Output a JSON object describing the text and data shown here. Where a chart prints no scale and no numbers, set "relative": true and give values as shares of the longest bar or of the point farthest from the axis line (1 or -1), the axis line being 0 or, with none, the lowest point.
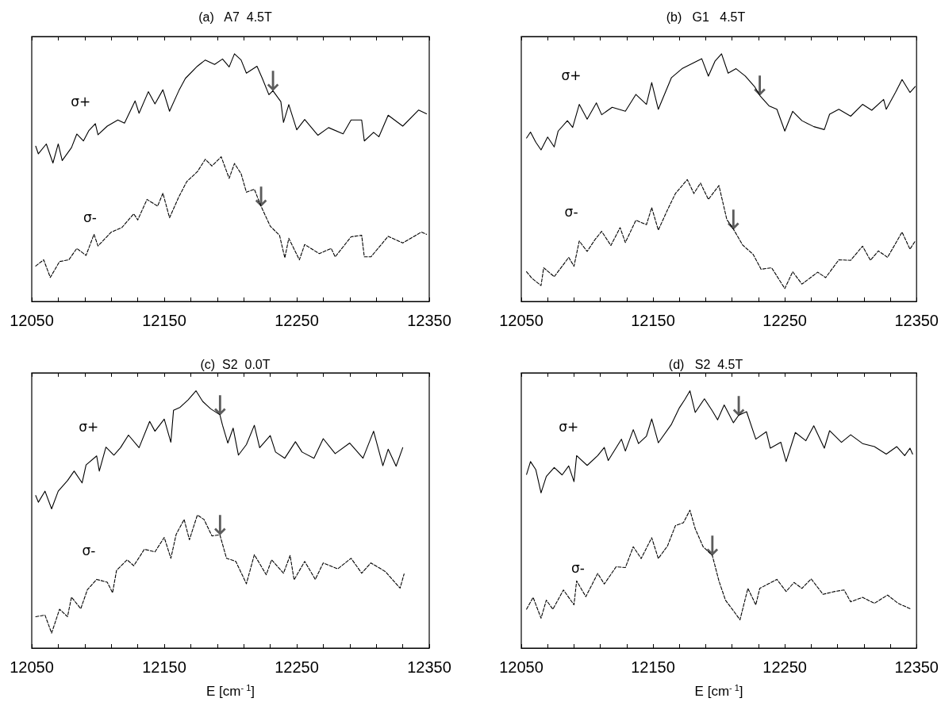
{
  "chart_data": [
    {
      "type": "line",
      "title": "(a)   A7  4.5T",
      "relative": true,
      "xlim": [
        12050,
        12350
      ],
      "xticks": [
        12050,
        {
          "value": 12070,
          "label": null
        },
        {
          "value": 12090,
          "label": null
        },
        {
          "value": 12110,
          "label": null
        },
        {
          "value": 12130,
          "label": null
        },
        12150,
        {
          "value": 12170,
          "label": null
        },
        {
          "value": 12190,
          "label": null
        },
        {
          "value": 12210,
          "label": null
        },
        {
          "value": 12230,
          "label": null
        },
        12250,
        {
          "value": 12270,
          "label": null
        },
        {
          "value": 12290,
          "label": null
        },
        {
          "value": 12310,
          "label": null
        },
        {
          "value": 12330,
          "label": null
        },
        12350
      ],
      "marker": "none",
      "series": [
        {
          "name": "σ+",
          "color": "#000000",
          "line_style": "solid",
          "x": [
            12053,
            12055,
            12061,
            12066,
            12070,
            12073,
            12080,
            12084,
            12089,
            12093,
            12098,
            12100,
            12107,
            12115,
            12120,
            12128,
            12131,
            12138,
            12143,
            12149,
            12154,
            12161,
            12166,
            12175,
            12181,
            12188,
            12194,
            12199,
            12203,
            12208,
            12212,
            12220,
            12224,
            12229,
            12232,
            12238,
            12240,
            12244,
            12250,
            12256,
            12266,
            12274,
            12285,
            12291,
            12299,
            12301,
            12308,
            12312,
            12319,
            12330,
            12342,
            12348
          ],
          "values": [
            0.627,
            0.596,
            0.636,
            0.559,
            0.636,
            0.569,
            0.621,
            0.676,
            0.648,
            0.689,
            0.718,
            0.673,
            0.708,
            0.733,
            0.72,
            0.81,
            0.76,
            0.847,
            0.798,
            0.855,
            0.768,
            0.851,
            0.901,
            0.95,
            0.975,
            0.957,
            0.979,
            0.947,
            1.0,
            0.975,
            0.922,
            0.95,
            0.901,
            0.835,
            0.851,
            0.807,
            0.723,
            0.795,
            0.693,
            0.735,
            0.671,
            0.702,
            0.677,
            0.733,
            0.733,
            0.648,
            0.683,
            0.665,
            0.752,
            0.708,
            0.773,
            0.758
          ]
        },
        {
          "name": "σ-",
          "color": "#000000",
          "line_style": "dashed",
          "x": [
            12053,
            12059,
            12064,
            12071,
            12078,
            12084,
            12091,
            12097,
            12100,
            12110,
            12118,
            12127,
            12130,
            12137,
            12145,
            12149,
            12154,
            12161,
            12167,
            12175,
            12181,
            12186,
            12193,
            12199,
            12203,
            12208,
            12212,
            12218,
            12223,
            12230,
            12237,
            12241,
            12244,
            12252,
            12256,
            12267,
            12276,
            12279,
            12291,
            12299,
            12301,
            12306,
            12319,
            12330,
            12344,
            12348
          ],
          "values": [
            0.143,
            0.168,
            0.097,
            0.161,
            0.168,
            0.214,
            0.186,
            0.271,
            0.224,
            0.28,
            0.298,
            0.354,
            0.329,
            0.412,
            0.385,
            0.437,
            0.338,
            0.422,
            0.484,
            0.524,
            0.574,
            0.547,
            0.584,
            0.497,
            0.557,
            0.516,
            0.441,
            0.453,
            0.385,
            0.304,
            0.267,
            0.176,
            0.255,
            0.168,
            0.23,
            0.193,
            0.214,
            0.18,
            0.261,
            0.267,
            0.18,
            0.18,
            0.263,
            0.236,
            0.28,
            0.271
          ]
        }
      ],
      "annotations": [
        {
          "text": "↓",
          "x": 12232,
          "y": 0.851
        },
        {
          "text": "↓",
          "x": 12223,
          "y": 0.385
        }
      ]
    },
    {
      "type": "line",
      "title": "(b)   G1   4.5T",
      "relative": true,
      "xlim": [
        12050,
        12350
      ],
      "xticks": [
        12050,
        {
          "value": 12070,
          "label": null
        },
        {
          "value": 12090,
          "label": null
        },
        {
          "value": 12110,
          "label": null
        },
        {
          "value": 12130,
          "label": null
        },
        12150,
        {
          "value": 12170,
          "label": null
        },
        {
          "value": 12190,
          "label": null
        },
        {
          "value": 12210,
          "label": null
        },
        {
          "value": 12230,
          "label": null
        },
        12250,
        {
          "value": 12270,
          "label": null
        },
        {
          "value": 12290,
          "label": null
        },
        {
          "value": 12310,
          "label": null
        },
        {
          "value": 12330,
          "label": null
        },
        12350
      ],
      "marker": "none",
      "series": [
        {
          "name": "σ+",
          "color": "#000000",
          "line_style": "solid",
          "x": [
            12054,
            12057,
            12061,
            12065,
            12070,
            12075,
            12078,
            12085,
            12089,
            12094,
            12100,
            12107,
            12111,
            12119,
            12129,
            12137,
            12145,
            12149,
            12154,
            12164,
            12172,
            12181,
            12187,
            12192,
            12197,
            12202,
            12207,
            12213,
            12220,
            12227,
            12231,
            12238,
            12244,
            12250,
            12256,
            12263,
            12272,
            12280,
            12284,
            12291,
            12300,
            12309,
            12316,
            12325,
            12327,
            12334,
            12339,
            12345,
            12349
          ],
          "values": [
            0.66,
            0.684,
            0.643,
            0.612,
            0.664,
            0.624,
            0.688,
            0.73,
            0.703,
            0.796,
            0.736,
            0.802,
            0.754,
            0.784,
            0.768,
            0.836,
            0.796,
            0.884,
            0.776,
            0.904,
            0.94,
            0.964,
            0.98,
            0.91,
            0.97,
            1.0,
            0.922,
            0.94,
            0.91,
            0.868,
            0.832,
            0.79,
            0.776,
            0.688,
            0.768,
            0.73,
            0.706,
            0.694,
            0.756,
            0.776,
            0.748,
            0.796,
            0.772,
            0.816,
            0.776,
            0.844,
            0.896,
            0.844,
            0.868
          ]
        },
        {
          "name": "σ-",
          "color": "#000000",
          "line_style": "dashed",
          "x": [
            12054,
            12058,
            12065,
            12067,
            12075,
            12081,
            12086,
            12090,
            12094,
            12100,
            12106,
            12111,
            12118,
            12125,
            12129,
            12137,
            12145,
            12149,
            12154,
            12161,
            12167,
            12176,
            12181,
            12186,
            12192,
            12200,
            12206,
            12211,
            12218,
            12226,
            12232,
            12240,
            12250,
            12256,
            12263,
            12275,
            12281,
            12291,
            12300,
            12309,
            12315,
            12321,
            12328,
            12339,
            12345,
            12349
          ],
          "values": [
            0.12,
            0.094,
            0.064,
            0.136,
            0.1,
            0.142,
            0.178,
            0.142,
            0.244,
            0.202,
            0.25,
            0.283,
            0.226,
            0.298,
            0.238,
            0.328,
            0.31,
            0.379,
            0.288,
            0.37,
            0.436,
            0.492,
            0.436,
            0.478,
            0.412,
            0.468,
            0.331,
            0.292,
            0.228,
            0.19,
            0.13,
            0.136,
            0.052,
            0.12,
            0.07,
            0.118,
            0.096,
            0.168,
            0.166,
            0.223,
            0.166,
            0.204,
            0.178,
            0.28,
            0.211,
            0.244
          ]
        }
      ],
      "annotations": [
        {
          "text": "↓",
          "x": 12231,
          "y": 0.832
        },
        {
          "text": "↓",
          "x": 12211,
          "y": 0.292
        }
      ]
    },
    {
      "type": "line",
      "title": "(c)  S2  0.0T",
      "xlabel": "E [cm$^{- 1}$]",
      "relative": true,
      "xlim": [
        12050,
        12350
      ],
      "xticks": [
        12050,
        {
          "value": 12070,
          "label": null
        },
        {
          "value": 12090,
          "label": null
        },
        {
          "value": 12110,
          "label": null
        },
        {
          "value": 12130,
          "label": null
        },
        12150,
        {
          "value": 12170,
          "label": null
        },
        {
          "value": 12190,
          "label": null
        },
        {
          "value": 12210,
          "label": null
        },
        {
          "value": 12230,
          "label": null
        },
        12250,
        {
          "value": 12270,
          "label": null
        },
        {
          "value": 12290,
          "label": null
        },
        {
          "value": 12310,
          "label": null
        },
        {
          "value": 12330,
          "label": null
        },
        12350
      ],
      "marker": "none",
      "series": [
        {
          "name": "σ+",
          "color": "#000000",
          "line_style": "solid",
          "x": [
            12053,
            12055,
            12060,
            12065,
            12070,
            12077,
            12082,
            12088,
            12091,
            12099,
            12101,
            12106,
            12112,
            12117,
            12123,
            12131,
            12139,
            12143,
            12150,
            12155,
            12157,
            12162,
            12168,
            12174,
            12179,
            12185,
            12192,
            12194,
            12198,
            12202,
            12206,
            12212,
            12218,
            12222,
            12230,
            12234,
            12241,
            12249,
            12254,
            12263,
            12270,
            12279,
            12290,
            12300,
            12308,
            12315,
            12319,
            12325,
            12330
          ],
          "values": [
            0.593,
            0.567,
            0.61,
            0.541,
            0.61,
            0.651,
            0.688,
            0.642,
            0.712,
            0.747,
            0.688,
            0.781,
            0.75,
            0.779,
            0.828,
            0.779,
            0.881,
            0.843,
            0.89,
            0.8,
            0.924,
            0.936,
            0.965,
            1.0,
            0.959,
            0.93,
            0.907,
            0.866,
            0.797,
            0.855,
            0.75,
            0.791,
            0.866,
            0.779,
            0.826,
            0.762,
            0.738,
            0.802,
            0.762,
            0.738,
            0.814,
            0.756,
            0.797,
            0.738,
            0.843,
            0.709,
            0.773,
            0.707,
            0.779
          ]
        },
        {
          "name": "σ-",
          "color": "#000000",
          "line_style": "dashed",
          "x": [
            12053,
            12060,
            12065,
            12071,
            12077,
            12080,
            12087,
            12092,
            12099,
            12107,
            12111,
            12114,
            12122,
            12127,
            12135,
            12143,
            12150,
            12155,
            12159,
            12165,
            12169,
            12175,
            12180,
            12186,
            12192,
            12197,
            12204,
            12212,
            12218,
            12227,
            12231,
            12240,
            12245,
            12248,
            12256,
            12264,
            12270,
            12281,
            12291,
            12299,
            12306,
            12317,
            12323,
            12328,
            12331
          ],
          "values": [
            0.122,
            0.128,
            0.058,
            0.151,
            0.122,
            0.198,
            0.153,
            0.227,
            0.267,
            0.256,
            0.215,
            0.302,
            0.343,
            0.32,
            0.384,
            0.374,
            0.43,
            0.349,
            0.442,
            0.5,
            0.421,
            0.517,
            0.5,
            0.436,
            0.44,
            0.349,
            0.337,
            0.25,
            0.363,
            0.285,
            0.343,
            0.291,
            0.36,
            0.265,
            0.337,
            0.267,
            0.331,
            0.308,
            0.349,
            0.291,
            0.331,
            0.297,
            0.262,
            0.233,
            0.288
          ]
        }
      ],
      "annotations": [
        {
          "text": "↓",
          "x": 12192,
          "y": 0.907
        },
        {
          "text": "↓",
          "x": 12192,
          "y": 0.44
        }
      ]
    },
    {
      "type": "line",
      "title": "(d)   S2  4.5T",
      "xlabel": "E [cm$^{- 1}$]",
      "relative": true,
      "xlim": [
        12050,
        12350
      ],
      "xticks": [
        12050,
        {
          "value": 12070,
          "label": null
        },
        {
          "value": 12090,
          "label": null
        },
        {
          "value": 12110,
          "label": null
        },
        {
          "value": 12130,
          "label": null
        },
        12150,
        {
          "value": 12170,
          "label": null
        },
        {
          "value": 12190,
          "label": null
        },
        {
          "value": 12210,
          "label": null
        },
        {
          "value": 12230,
          "label": null
        },
        12250,
        {
          "value": 12270,
          "label": null
        },
        {
          "value": 12290,
          "label": null
        },
        {
          "value": 12310,
          "label": null
        },
        {
          "value": 12330,
          "label": null
        },
        12350
      ],
      "marker": "none",
      "series": [
        {
          "name": "σ+",
          "color": "#000000",
          "line_style": "solid",
          "x": [
            12054,
            12057,
            12061,
            12065,
            12069,
            12075,
            12081,
            12086,
            12090,
            12092,
            12100,
            12108,
            12113,
            12116,
            12126,
            12129,
            12135,
            12139,
            12145,
            12149,
            12154,
            12164,
            12170,
            12174,
            12178,
            12182,
            12189,
            12195,
            12199,
            12204,
            12211,
            12215,
            12221,
            12228,
            12236,
            12239,
            12247,
            12251,
            12258,
            12266,
            12272,
            12280,
            12284,
            12293,
            12300,
            12309,
            12318,
            12327,
            12335,
            12341,
            12345,
            12347
          ],
          "values": [
            0.675,
            0.725,
            0.694,
            0.603,
            0.667,
            0.702,
            0.673,
            0.708,
            0.647,
            0.748,
            0.71,
            0.748,
            0.78,
            0.729,
            0.812,
            0.766,
            0.849,
            0.795,
            0.824,
            0.891,
            0.798,
            0.87,
            0.934,
            0.965,
            1.0,
            0.916,
            0.969,
            0.922,
            0.887,
            0.945,
            0.876,
            0.905,
            0.919,
            0.812,
            0.841,
            0.777,
            0.8,
            0.725,
            0.838,
            0.806,
            0.864,
            0.777,
            0.845,
            0.8,
            0.829,
            0.795,
            0.783,
            0.754,
            0.783,
            0.748,
            0.777,
            0.754
          ]
        },
        {
          "name": "σ-",
          "color": "#000000",
          "line_style": "dashed",
          "x": [
            12054,
            12059,
            12065,
            12069,
            12074,
            12082,
            12090,
            12092,
            12099,
            12108,
            12113,
            12122,
            12129,
            12135,
            12141,
            12149,
            12154,
            12161,
            12167,
            12173,
            12178,
            12182,
            12188,
            12195,
            12200,
            12205,
            12211,
            12216,
            12222,
            12228,
            12231,
            12244,
            12251,
            12257,
            12263,
            12270,
            12279,
            12288,
            12295,
            12300,
            12309,
            12318,
            12328,
            12336,
            12346
          ],
          "values": [
            0.151,
            0.197,
            0.116,
            0.186,
            0.151,
            0.226,
            0.168,
            0.261,
            0.2,
            0.29,
            0.249,
            0.316,
            0.313,
            0.394,
            0.348,
            0.429,
            0.348,
            0.397,
            0.476,
            0.487,
            0.536,
            0.464,
            0.394,
            0.36,
            0.261,
            0.186,
            0.145,
            0.11,
            0.232,
            0.168,
            0.232,
            0.267,
            0.22,
            0.255,
            0.232,
            0.269,
            0.209,
            0.22,
            0.226,
            0.18,
            0.197,
            0.174,
            0.206,
            0.174,
            0.151
          ]
        }
      ],
      "annotations": [
        {
          "text": "↓",
          "x": 12215,
          "y": 0.905
        },
        {
          "text": "↓",
          "x": 12195,
          "y": 0.36
        }
      ]
    }
  ]
}
